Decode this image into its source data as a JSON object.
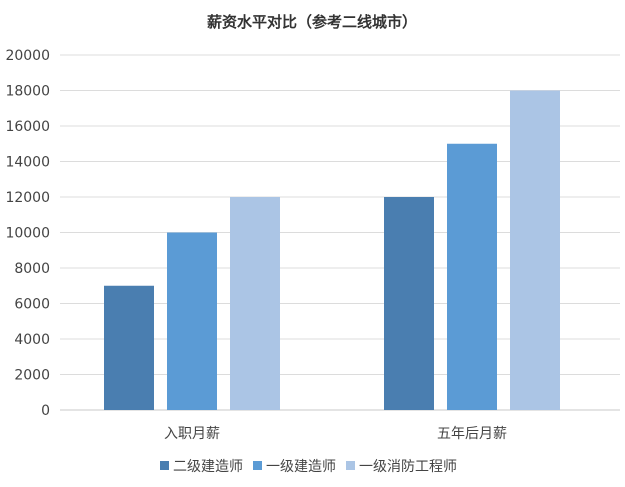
{
  "chart_data": {
    "type": "bar",
    "title": "薪资水平对比（参考二线城市）",
    "xlabel": "",
    "ylabel": "",
    "categories": [
      "入职月薪",
      "五年后月薪"
    ],
    "series": [
      {
        "name": "二级建造师",
        "values": [
          7000,
          12000
        ],
        "color": "#4a7eb0"
      },
      {
        "name": "一级建造师",
        "values": [
          10000,
          15000
        ],
        "color": "#5b9bd5"
      },
      {
        "name": "一级消防工程师",
        "values": [
          12000,
          18000
        ],
        "color": "#abc5e5"
      }
    ],
    "ylim": [
      0,
      20000
    ],
    "yticks": [
      0,
      2000,
      4000,
      6000,
      8000,
      10000,
      12000,
      14000,
      16000,
      18000,
      20000
    ],
    "grid": true,
    "legend": "bottom"
  }
}
